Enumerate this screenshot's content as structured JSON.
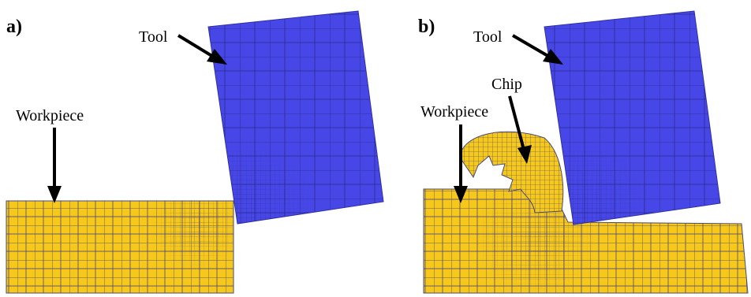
{
  "colors": {
    "tool": "#4747e8",
    "workpiece": "#f7c81c",
    "mesh": "#3a3a7a",
    "annotation": "#000000"
  },
  "panel_a": {
    "label": "a)",
    "tool_label": "Tool",
    "workpiece_label": "Workpiece"
  },
  "panel_b": {
    "label": "b)",
    "tool_label": "Tool",
    "workpiece_label": "Workpiece",
    "chip_label": "Chip"
  }
}
